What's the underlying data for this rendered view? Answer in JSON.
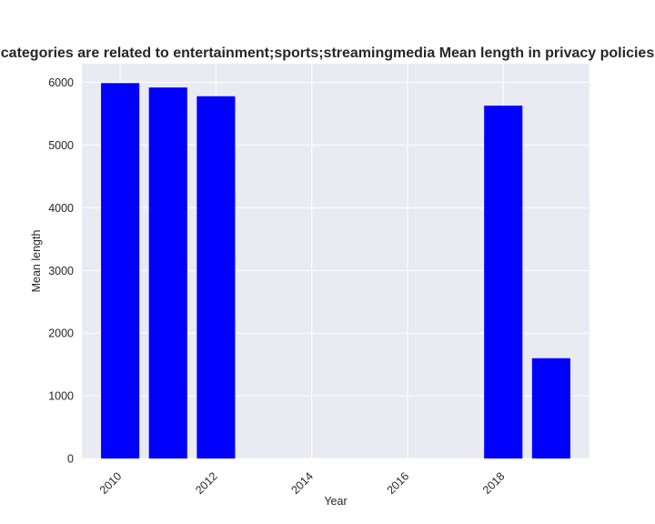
{
  "chart_data": {
    "type": "bar",
    "title": "categories are related to entertainment;sports;streamingmedia Mean length in privacy policies",
    "xlabel": "Year",
    "ylabel": "Mean length",
    "x": [
      2010,
      2011,
      2012,
      2018,
      2019
    ],
    "values": [
      5990,
      5920,
      5780,
      5630,
      1600
    ],
    "xticks": [
      "2010",
      "2012",
      "2014",
      "2016",
      "2018"
    ],
    "yticks": [
      "0",
      "1000",
      "2000",
      "3000",
      "4000",
      "5000",
      "6000"
    ],
    "xlim": [
      2009.2,
      2019.8
    ],
    "ylim": [
      0,
      6300
    ],
    "grid": true,
    "bar_color": "#0000ff",
    "plot_background": "#eaeaf2",
    "grid_color": "#ffffff"
  }
}
